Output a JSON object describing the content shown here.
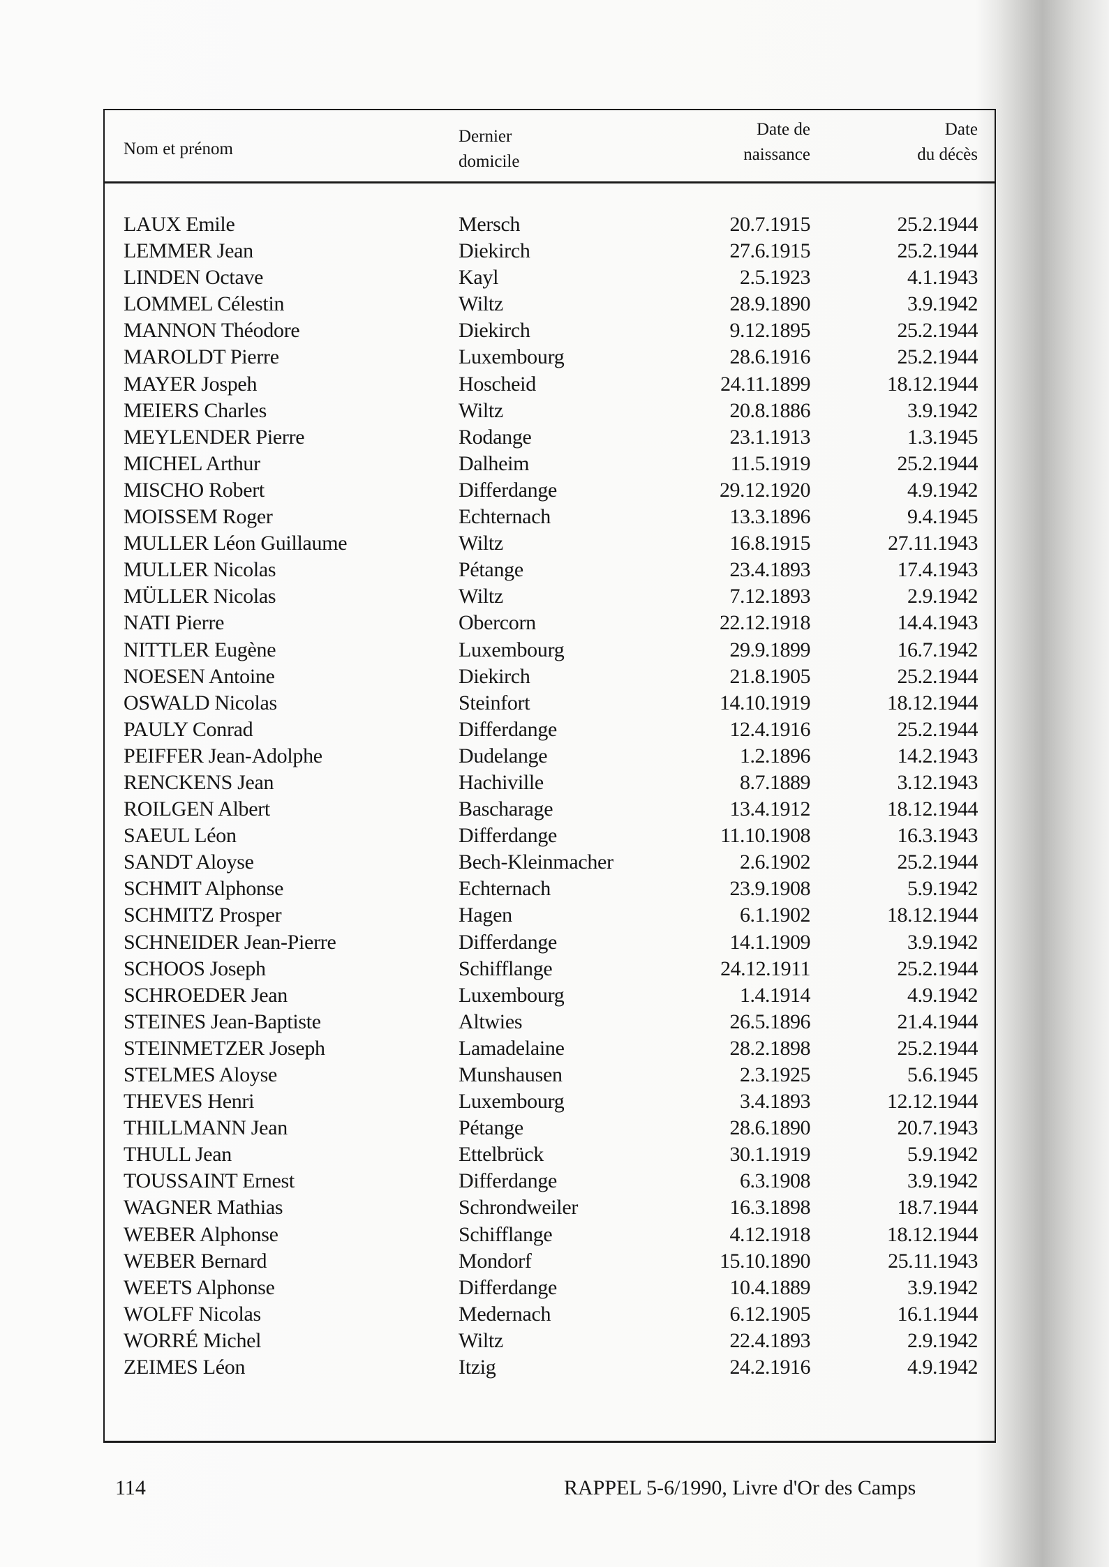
{
  "table": {
    "headers": {
      "name": "Nom et prénom",
      "domicile": [
        "Dernier",
        "domicile"
      ],
      "birth": [
        "Date de",
        "naissance"
      ],
      "death": [
        "Date",
        "du décès"
      ]
    },
    "rows": [
      [
        "LAUX  Emile",
        "Mersch",
        "20.7.1915",
        "25.2.1944"
      ],
      [
        "LEMMER  Jean",
        "Diekirch",
        "27.6.1915",
        "25.2.1944"
      ],
      [
        "LINDEN  Octave",
        "Kayl",
        "2.5.1923",
        "4.1.1943"
      ],
      [
        "LOMMEL  Célestin",
        "Wiltz",
        "28.9.1890",
        "3.9.1942"
      ],
      [
        "MANNON  Théodore",
        "Diekirch",
        "9.12.1895",
        "25.2.1944"
      ],
      [
        "MAROLDT  Pierre",
        "Luxembourg",
        "28.6.1916",
        "25.2.1944"
      ],
      [
        "MAYER  Jospeh",
        "Hoscheid",
        "24.11.1899",
        "18.12.1944"
      ],
      [
        "MEIERS  Charles",
        "Wiltz",
        "20.8.1886",
        "3.9.1942"
      ],
      [
        "MEYLENDER  Pierre",
        "Rodange",
        "23.1.1913",
        "1.3.1945"
      ],
      [
        "MICHEL  Arthur",
        "Dalheim",
        "11.5.1919",
        "25.2.1944"
      ],
      [
        "MISCHO  Robert",
        "Differdange",
        "29.12.1920",
        "4.9.1942"
      ],
      [
        "MOISSEM  Roger",
        "Echternach",
        "13.3.1896",
        "9.4.1945"
      ],
      [
        "MULLER  Léon  Guillaume",
        "Wiltz",
        "16.8.1915",
        "27.11.1943"
      ],
      [
        "MULLER  Nicolas",
        "Pétange",
        "23.4.1893",
        "17.4.1943"
      ],
      [
        "MÜLLER  Nicolas",
        "Wiltz",
        "7.12.1893",
        "2.9.1942"
      ],
      [
        "NATI  Pierre",
        "Obercorn",
        "22.12.1918",
        "14.4.1943"
      ],
      [
        "NITTLER  Eugène",
        "Luxembourg",
        "29.9.1899",
        "16.7.1942"
      ],
      [
        "NOESEN  Antoine",
        "Diekirch",
        "21.8.1905",
        "25.2.1944"
      ],
      [
        "OSWALD  Nicolas",
        "Steinfort",
        "14.10.1919",
        "18.12.1944"
      ],
      [
        "PAULY  Conrad",
        "Differdange",
        "12.4.1916",
        "25.2.1944"
      ],
      [
        "PEIFFER  Jean-Adolphe",
        "Dudelange",
        "1.2.1896",
        "14.2.1943"
      ],
      [
        "RENCKENS  Jean",
        "Hachiville",
        "8.7.1889",
        "3.12.1943"
      ],
      [
        "ROILGEN  Albert",
        "Bascharage",
        "13.4.1912",
        "18.12.1944"
      ],
      [
        "SAEUL  Léon",
        "Differdange",
        "11.10.1908",
        "16.3.1943"
      ],
      [
        "SANDT  Aloyse",
        "Bech-Kleinmacher",
        "2.6.1902",
        "25.2.1944"
      ],
      [
        "SCHMIT  Alphonse",
        "Echternach",
        "23.9.1908",
        "5.9.1942"
      ],
      [
        "SCHMITZ  Prosper",
        "Hagen",
        "6.1.1902",
        "18.12.1944"
      ],
      [
        "SCHNEIDER  Jean-Pierre",
        "Differdange",
        "14.1.1909",
        "3.9.1942"
      ],
      [
        "SCHOOS  Joseph",
        "Schifflange",
        "24.12.1911",
        "25.2.1944"
      ],
      [
        "SCHROEDER  Jean",
        "Luxembourg",
        "1.4.1914",
        "4.9.1942"
      ],
      [
        "STEINES  Jean-Baptiste",
        "Altwies",
        "26.5.1896",
        "21.4.1944"
      ],
      [
        "STEINMETZER  Joseph",
        "Lamadelaine",
        "28.2.1898",
        "25.2.1944"
      ],
      [
        "STELMES  Aloyse",
        "Munshausen",
        "2.3.1925",
        "5.6.1945"
      ],
      [
        "THEVES  Henri",
        "Luxembourg",
        "3.4.1893",
        "12.12.1944"
      ],
      [
        "THILLMANN  Jean",
        "Pétange",
        "28.6.1890",
        "20.7.1943"
      ],
      [
        "THULL  Jean",
        "Ettelbrück",
        "30.1.1919",
        "5.9.1942"
      ],
      [
        "TOUSSAINT  Ernest",
        "Differdange",
        "6.3.1908",
        "3.9.1942"
      ],
      [
        "WAGNER  Mathias",
        "Schrondweiler",
        "16.3.1898",
        "18.7.1944"
      ],
      [
        "WEBER  Alphonse",
        "Schifflange",
        "4.12.1918",
        "18.12.1944"
      ],
      [
        "WEBER  Bernard",
        "Mondorf",
        "15.10.1890",
        "25.11.1943"
      ],
      [
        "WEETS  Alphonse",
        "Differdange",
        "10.4.1889",
        "3.9.1942"
      ],
      [
        "WOLFF  Nicolas",
        "Medernach",
        "6.12.1905",
        "16.1.1944"
      ],
      [
        "WORRÉ  Michel",
        "Wiltz",
        "22.4.1893",
        "2.9.1942"
      ],
      [
        "ZEIMES  Léon",
        "Itzig",
        "24.2.1916",
        "4.9.1942"
      ]
    ]
  },
  "footer": {
    "page_number": "114",
    "source": "RAPPEL 5-6/1990, Livre d'Or des Camps"
  }
}
